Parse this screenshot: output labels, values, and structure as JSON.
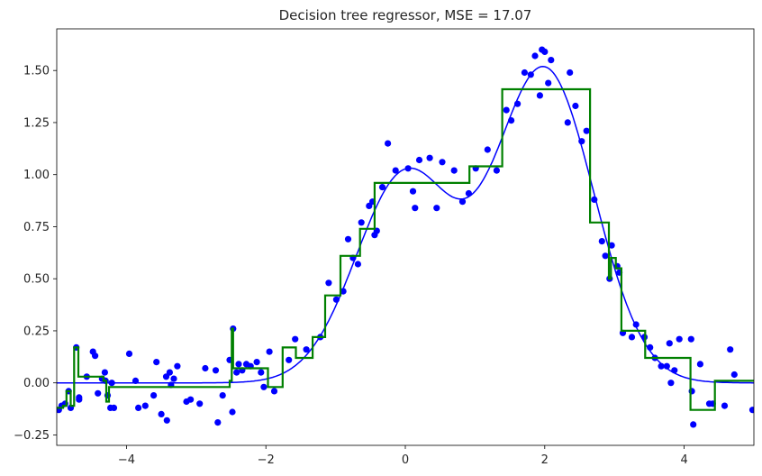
{
  "chart_data": {
    "type": "scatter",
    "title": "Decision tree regressor, MSE = 17.07",
    "xlabel": "",
    "ylabel": "",
    "xlim": [
      -5,
      5
    ],
    "ylim": [
      -0.3,
      1.7
    ],
    "xticks": [
      -4,
      -2,
      0,
      2,
      4
    ],
    "xtick_labels": [
      "−4",
      "−2",
      "0",
      "2",
      "4"
    ],
    "yticks": [
      -0.25,
      0,
      0.25,
      0.5,
      0.75,
      1.0,
      1.25,
      1.5
    ],
    "ytick_labels": [
      "−0.25",
      "0.00",
      "0.25",
      "0.50",
      "0.75",
      "1.00",
      "1.25",
      "1.50"
    ],
    "grid": false,
    "legend": "none",
    "colors": {
      "points": "#0000ff",
      "true_curve": "#0000ff",
      "prediction": "#008000"
    },
    "true_function": {
      "form": "exp(-x^2) + 1.5*exp(-(x-2)^2)",
      "x_range": [
        -5,
        5
      ]
    },
    "series": [
      {
        "style": "points",
        "points": [
          [
            -4.97,
            -0.13
          ],
          [
            -4.93,
            -0.11
          ],
          [
            -4.88,
            -0.1
          ],
          [
            -4.83,
            -0.04
          ],
          [
            -4.8,
            -0.12
          ],
          [
            -4.72,
            0.17
          ],
          [
            -4.68,
            -0.07
          ],
          [
            -4.68,
            -0.08
          ],
          [
            -4.57,
            0.03
          ],
          [
            -4.48,
            0.15
          ],
          [
            -4.45,
            0.13
          ],
          [
            -4.41,
            -0.05
          ],
          [
            -4.35,
            0.02
          ],
          [
            -4.31,
            0.05
          ],
          [
            -4.3,
            0.01
          ],
          [
            -4.27,
            -0.06
          ],
          [
            -4.23,
            -0.12
          ],
          [
            -4.21,
            0.0
          ],
          [
            -4.18,
            -0.12
          ],
          [
            -3.96,
            0.14
          ],
          [
            -3.87,
            0.01
          ],
          [
            -3.83,
            -0.12
          ],
          [
            -3.73,
            -0.11
          ],
          [
            -3.61,
            -0.06
          ],
          [
            -3.57,
            0.1
          ],
          [
            -3.5,
            -0.15
          ],
          [
            -3.42,
            -0.18
          ],
          [
            -3.43,
            0.03
          ],
          [
            -3.38,
            0.05
          ],
          [
            -3.36,
            -0.01
          ],
          [
            -3.32,
            0.02
          ],
          [
            -3.27,
            0.08
          ],
          [
            -3.14,
            -0.09
          ],
          [
            -3.08,
            -0.08
          ],
          [
            -2.95,
            -0.1
          ],
          [
            -2.87,
            0.07
          ],
          [
            -2.72,
            0.06
          ],
          [
            -2.69,
            -0.19
          ],
          [
            -2.62,
            -0.06
          ],
          [
            -2.52,
            0.11
          ],
          [
            -2.48,
            -0.14
          ],
          [
            -2.47,
            0.26
          ],
          [
            -2.42,
            0.05
          ],
          [
            -2.39,
            0.09
          ],
          [
            -2.34,
            0.06
          ],
          [
            -2.28,
            0.09
          ],
          [
            -2.22,
            0.08
          ],
          [
            -2.13,
            0.1
          ],
          [
            -2.07,
            0.05
          ],
          [
            -2.03,
            -0.02
          ],
          [
            -1.95,
            0.15
          ],
          [
            -1.88,
            -0.04
          ],
          [
            -1.67,
            0.11
          ],
          [
            -1.58,
            0.21
          ],
          [
            -1.42,
            0.16
          ],
          [
            -1.22,
            0.22
          ],
          [
            -1.1,
            0.48
          ],
          [
            -0.99,
            0.4
          ],
          [
            -0.89,
            0.44
          ],
          [
            -0.82,
            0.69
          ],
          [
            -0.75,
            0.6
          ],
          [
            -0.68,
            0.57
          ],
          [
            -0.63,
            0.77
          ],
          [
            -0.52,
            0.85
          ],
          [
            -0.47,
            0.87
          ],
          [
            -0.44,
            0.71
          ],
          [
            -0.41,
            0.73
          ],
          [
            -0.33,
            0.94
          ],
          [
            -0.25,
            1.15
          ],
          [
            -0.14,
            1.02
          ],
          [
            0.04,
            1.03
          ],
          [
            0.11,
            0.92
          ],
          [
            0.14,
            0.84
          ],
          [
            0.2,
            1.07
          ],
          [
            0.35,
            1.08
          ],
          [
            0.45,
            0.84
          ],
          [
            0.53,
            1.06
          ],
          [
            0.7,
            1.02
          ],
          [
            0.82,
            0.87
          ],
          [
            0.91,
            0.91
          ],
          [
            1.01,
            1.03
          ],
          [
            1.18,
            1.12
          ],
          [
            1.31,
            1.02
          ],
          [
            1.45,
            1.31
          ],
          [
            1.52,
            1.26
          ],
          [
            1.61,
            1.34
          ],
          [
            1.71,
            1.49
          ],
          [
            1.8,
            1.48
          ],
          [
            1.86,
            1.57
          ],
          [
            1.93,
            1.38
          ],
          [
            1.96,
            1.6
          ],
          [
            2.0,
            1.59
          ],
          [
            2.05,
            1.44
          ],
          [
            2.09,
            1.55
          ],
          [
            2.33,
            1.25
          ],
          [
            2.36,
            1.49
          ],
          [
            2.44,
            1.33
          ],
          [
            2.53,
            1.16
          ],
          [
            2.6,
            1.21
          ],
          [
            2.71,
            0.88
          ],
          [
            2.82,
            0.68
          ],
          [
            2.87,
            0.61
          ],
          [
            2.93,
            0.5
          ],
          [
            2.96,
            0.66
          ],
          [
            3.04,
            0.56
          ],
          [
            3.07,
            0.53
          ],
          [
            3.12,
            0.24
          ],
          [
            3.25,
            0.22
          ],
          [
            3.31,
            0.28
          ],
          [
            3.43,
            0.22
          ],
          [
            3.51,
            0.17
          ],
          [
            3.58,
            0.12
          ],
          [
            3.67,
            0.08
          ],
          [
            3.75,
            0.08
          ],
          [
            3.86,
            0.06
          ],
          [
            3.79,
            0.19
          ],
          [
            3.93,
            0.21
          ],
          [
            3.81,
            0.0
          ],
          [
            4.1,
            0.21
          ],
          [
            4.11,
            -0.04
          ],
          [
            4.13,
            -0.2
          ],
          [
            4.23,
            0.09
          ],
          [
            4.36,
            -0.1
          ],
          [
            4.41,
            -0.1
          ],
          [
            4.58,
            -0.11
          ],
          [
            4.66,
            0.16
          ],
          [
            4.72,
            0.04
          ],
          [
            4.98,
            -0.13
          ]
        ]
      },
      {
        "style": "line",
        "points": [
          [
            -5.0,
            -0.12
          ],
          [
            -4.91,
            -0.12
          ],
          [
            -4.91,
            -0.11
          ],
          [
            -4.86,
            -0.11
          ],
          [
            -4.86,
            -0.04
          ],
          [
            -4.8,
            -0.04
          ],
          [
            -4.8,
            -0.11
          ],
          [
            -4.75,
            -0.11
          ],
          [
            -4.75,
            0.17
          ],
          [
            -4.69,
            0.17
          ],
          [
            -4.69,
            0.03
          ],
          [
            -4.33,
            0.03
          ],
          [
            -4.33,
            0.01
          ],
          [
            -4.29,
            0.01
          ],
          [
            -4.29,
            -0.09
          ],
          [
            -4.25,
            -0.09
          ],
          [
            -4.25,
            -0.02
          ],
          [
            -2.52,
            -0.02
          ],
          [
            -2.52,
            0.01
          ],
          [
            -2.49,
            0.01
          ],
          [
            -2.49,
            0.26
          ],
          [
            -2.47,
            0.26
          ],
          [
            -2.47,
            0.07
          ],
          [
            -1.97,
            0.07
          ],
          [
            -1.97,
            -0.02
          ],
          [
            -1.76,
            -0.02
          ],
          [
            -1.76,
            0.17
          ],
          [
            -1.57,
            0.17
          ],
          [
            -1.57,
            0.12
          ],
          [
            -1.33,
            0.12
          ],
          [
            -1.33,
            0.22
          ],
          [
            -1.15,
            0.22
          ],
          [
            -1.15,
            0.42
          ],
          [
            -0.93,
            0.42
          ],
          [
            -0.93,
            0.61
          ],
          [
            -0.65,
            0.61
          ],
          [
            -0.65,
            0.74
          ],
          [
            -0.44,
            0.74
          ],
          [
            -0.44,
            0.96
          ],
          [
            0.92,
            0.96
          ],
          [
            0.92,
            1.04
          ],
          [
            1.39,
            1.04
          ],
          [
            1.39,
            1.41
          ],
          [
            2.65,
            1.41
          ],
          [
            2.65,
            0.77
          ],
          [
            2.92,
            0.77
          ],
          [
            2.92,
            0.5
          ],
          [
            2.95,
            0.5
          ],
          [
            2.95,
            0.6
          ],
          [
            3.02,
            0.6
          ],
          [
            3.02,
            0.55
          ],
          [
            3.1,
            0.55
          ],
          [
            3.1,
            0.25
          ],
          [
            3.44,
            0.25
          ],
          [
            3.44,
            0.12
          ],
          [
            4.09,
            0.12
          ],
          [
            4.09,
            -0.13
          ],
          [
            4.44,
            -0.13
          ],
          [
            4.44,
            0.01
          ],
          [
            5.0,
            0.01
          ]
        ]
      }
    ]
  }
}
